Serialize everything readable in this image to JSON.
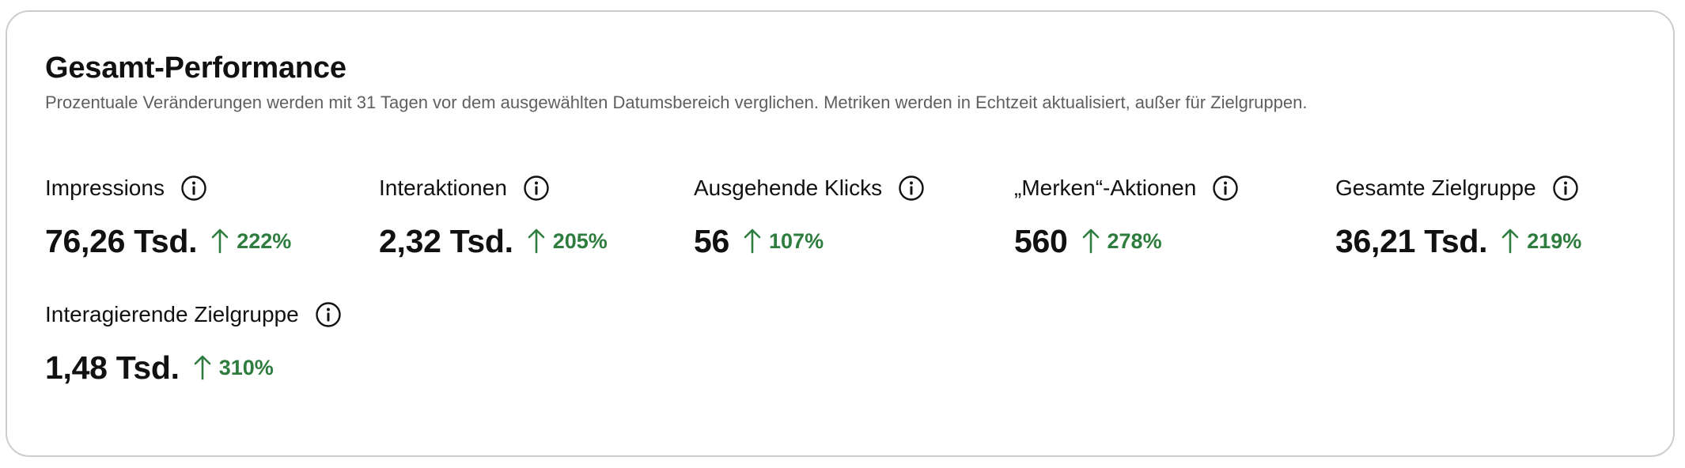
{
  "header": {
    "title": "Gesamt-Performance",
    "subtitle": "Prozentuale Veränderungen werden mit 31 Tagen vor dem ausgewählten Datumsbereich verglichen. Metriken werden in Echtzeit aktualisiert, außer für Zielgruppen."
  },
  "colors": {
    "positive_change": "#2e7d3e",
    "text": "#111111",
    "subtitle": "#5f5f5f",
    "border": "#cdcdcd"
  },
  "icons": {
    "info": "info-circle-icon",
    "trend": "arrow-up-icon"
  },
  "metrics": [
    {
      "label": "Impressions",
      "value": "76,26 Tsd.",
      "change": "222%"
    },
    {
      "label": "Interaktionen",
      "value": "2,32 Tsd.",
      "change": "205%"
    },
    {
      "label": "Ausgehende Klicks",
      "value": "56",
      "change": "107%"
    },
    {
      "label": "„Merken“-Aktionen",
      "value": "560",
      "change": "278%"
    },
    {
      "label": "Gesamte Zielgruppe",
      "value": "36,21 Tsd.",
      "change": "219%"
    },
    {
      "label": "Interagierende Zielgruppe",
      "value": "1,48 Tsd.",
      "change": "310%"
    }
  ]
}
